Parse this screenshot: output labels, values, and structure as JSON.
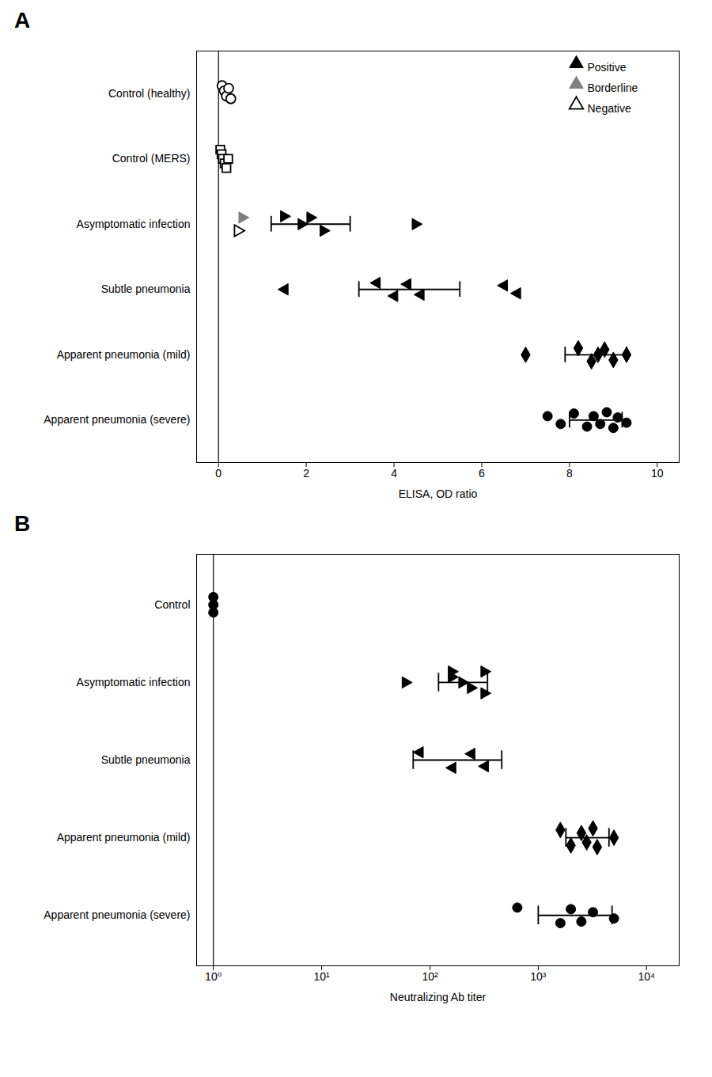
{
  "chart_data": [
    {
      "type": "scatter",
      "title": "A",
      "xlabel": "ELISA, OD ratio",
      "xlim": [
        -0.5,
        10.5
      ],
      "xticks": [
        0,
        2,
        4,
        6,
        8,
        10
      ],
      "grid": false,
      "legend": "upper right",
      "vline": 0,
      "categories": [
        "Control (healthy)",
        "Control (MERS)",
        "Asymptomatic infection",
        "Subtle pneumonia",
        "Apparent pneumonia (mild)",
        "Apparent pneumonia (severe)"
      ],
      "series": [
        {
          "name": "Positive",
          "color": "black",
          "marker": "filled"
        },
        {
          "name": "Borderline",
          "color": "gray",
          "marker": "filled"
        },
        {
          "name": "Negative",
          "color": "black",
          "marker": "open"
        }
      ],
      "groups": [
        {
          "marker": "circle",
          "x": [
            0.08,
            0.13,
            0.18,
            0.23,
            0.28
          ],
          "jitter": [
            0.12,
            0.04,
            -0.04,
            0.08,
            -0.08
          ],
          "result": [
            "Negative",
            "Negative",
            "Negative",
            "Negative",
            "Negative"
          ]
        },
        {
          "marker": "square",
          "x": [
            0.04,
            0.07,
            0.1,
            0.14,
            0.18,
            0.22
          ],
          "jitter": [
            0.14,
            0.07,
            0.0,
            -0.07,
            -0.14,
            0.0
          ],
          "result": [
            "Negative",
            "Negative",
            "Negative",
            "Negative",
            "Negative",
            "Negative"
          ]
        },
        {
          "marker": "triangle-right",
          "x": [
            0.45,
            0.55,
            1.5,
            1.9,
            2.1,
            2.4,
            4.5
          ],
          "jitter": [
            -0.1,
            0.1,
            0.12,
            0.0,
            0.1,
            -0.1,
            0.0
          ],
          "result": [
            "Negative",
            "Borderline",
            "Positive",
            "Positive",
            "Positive",
            "Positive",
            "Positive"
          ],
          "mean": 2.1,
          "ci_lo": 1.2,
          "ci_hi": 3.0
        },
        {
          "marker": "triangle-left",
          "x": [
            1.5,
            3.6,
            4.0,
            4.3,
            4.6,
            6.5,
            6.8
          ],
          "jitter": [
            0.0,
            0.1,
            -0.1,
            0.08,
            -0.08,
            0.06,
            -0.06
          ],
          "result": [
            "Positive",
            "Positive",
            "Positive",
            "Positive",
            "Positive",
            "Positive",
            "Positive"
          ],
          "mean": 4.3,
          "ci_lo": 3.2,
          "ci_hi": 5.5
        },
        {
          "marker": "diamond",
          "x": [
            7.0,
            8.2,
            8.5,
            8.65,
            8.8,
            9.0,
            9.3
          ],
          "jitter": [
            0.0,
            0.1,
            -0.1,
            0.0,
            0.08,
            -0.08,
            0.0
          ],
          "result": [
            "Positive",
            "Positive",
            "Positive",
            "Positive",
            "Positive",
            "Positive",
            "Positive"
          ],
          "mean": 8.6,
          "ci_lo": 7.9,
          "ci_hi": 9.3
        },
        {
          "marker": "circle",
          "x": [
            7.5,
            7.8,
            8.1,
            8.4,
            8.55,
            8.7,
            8.85,
            9.0,
            9.1,
            9.3
          ],
          "jitter": [
            0.06,
            -0.06,
            0.1,
            -0.1,
            0.06,
            -0.06,
            0.12,
            -0.12,
            0.04,
            -0.04
          ],
          "result": [
            "Positive",
            "Positive",
            "Positive",
            "Positive",
            "Positive",
            "Positive",
            "Positive",
            "Positive",
            "Positive",
            "Positive"
          ],
          "mean": 8.6,
          "ci_lo": 8.0,
          "ci_hi": 9.2
        }
      ]
    },
    {
      "type": "scatter",
      "title": "B",
      "xlabel": "Neutralizing Ab titer",
      "log": "x",
      "xlim": [
        0.7,
        20000
      ],
      "xticks": [
        {
          "value": 1,
          "label": "10⁰"
        },
        {
          "value": 10,
          "label": "10¹"
        },
        {
          "value": 100,
          "label": "10²"
        },
        {
          "value": 1000,
          "label": "10³"
        },
        {
          "value": 10000,
          "label": "10⁴"
        }
      ],
      "grid": false,
      "vline": 1.0,
      "color": "black",
      "categories": [
        "Control",
        "Asymptomatic infection",
        "Subtle pneumonia",
        "Apparent pneumonia (mild)",
        "Apparent pneumonia (severe)"
      ],
      "groups": [
        {
          "marker": "circle",
          "x": [
            1.0,
            1.0,
            1.0
          ],
          "jitter": [
            0.1,
            0.0,
            -0.1
          ]
        },
        {
          "marker": "triangle-right",
          "x": [
            60,
            160,
            160,
            200,
            240,
            320,
            320
          ],
          "jitter": [
            0.0,
            0.14,
            0.07,
            0.0,
            -0.07,
            0.14,
            -0.14
          ],
          "mean": 200,
          "ci_lo": 120,
          "ci_hi": 340
        },
        {
          "marker": "triangle-left",
          "x": [
            80,
            160,
            240,
            320
          ],
          "jitter": [
            0.1,
            -0.1,
            0.08,
            -0.08
          ],
          "mean": 180,
          "ci_lo": 70,
          "ci_hi": 460
        },
        {
          "marker": "diamond",
          "x": [
            1600,
            2000,
            2500,
            2800,
            3200,
            3500,
            5000
          ],
          "jitter": [
            0.1,
            -0.1,
            0.06,
            -0.06,
            0.12,
            -0.12,
            0.0
          ],
          "mean": 2800,
          "ci_lo": 1800,
          "ci_hi": 4500
        },
        {
          "marker": "circle",
          "x": [
            640,
            1600,
            2000,
            2500,
            3200,
            5000
          ],
          "jitter": [
            0.1,
            -0.1,
            0.08,
            -0.08,
            0.04,
            -0.04
          ],
          "mean": 2200,
          "ci_lo": 1000,
          "ci_hi": 4800
        }
      ]
    }
  ]
}
